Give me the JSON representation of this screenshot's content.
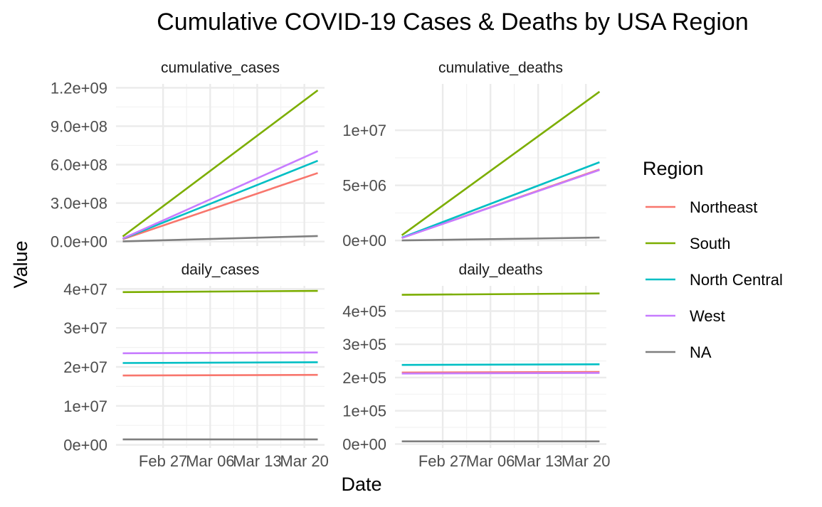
{
  "chart_data": {
    "type": "line",
    "title": "Cumulative COVID-19 Cases & Deaths by USA Region",
    "xlabel": "Date",
    "ylabel": "Value",
    "legend": {
      "title": "Region",
      "placement": "right",
      "entries": [
        "Northeast",
        "South",
        "North Central",
        "West",
        "NA"
      ]
    },
    "colors": {
      "Northeast": "#F8766D",
      "South": "#7CAE00",
      "North Central": "#00BFC4",
      "West": "#C77CFF",
      "NA": "#7F7F7F"
    },
    "grid": true,
    "facets_layout": "2x2, free y scales",
    "x_range": [
      "2023-02-20",
      "2023-03-23"
    ],
    "x_ticks": [
      {
        "date": "2023-02-27",
        "label": "Feb 27"
      },
      {
        "date": "2023-03-06",
        "label": "Mar 06"
      },
      {
        "date": "2023-03-13",
        "label": "Mar 13"
      },
      {
        "date": "2023-03-20",
        "label": "Mar 20"
      }
    ],
    "panels": [
      {
        "strip": "cumulative_cases",
        "ylim": [
          -35000000,
          1230000000
        ],
        "y_ticks": [
          {
            "value": 0,
            "label": "0.0e+00"
          },
          {
            "value": 300000000,
            "label": "3.0e+08"
          },
          {
            "value": 600000000,
            "label": "6.0e+08"
          },
          {
            "value": 900000000,
            "label": "9.0e+08"
          },
          {
            "value": 1200000000,
            "label": "1.2e+09"
          }
        ],
        "series": [
          {
            "name": "Northeast",
            "x": [
              "2023-02-21",
              "2023-03-22"
            ],
            "values": [
              18000000,
              535000000
            ]
          },
          {
            "name": "South",
            "x": [
              "2023-02-21",
              "2023-03-22"
            ],
            "values": [
              40000000,
              1180000000
            ]
          },
          {
            "name": "North Central",
            "x": [
              "2023-02-21",
              "2023-03-22"
            ],
            "values": [
              22000000,
              630000000
            ]
          },
          {
            "name": "West",
            "x": [
              "2023-02-21",
              "2023-03-22"
            ],
            "values": [
              24000000,
              705000000
            ]
          },
          {
            "name": "NA",
            "x": [
              "2023-02-21",
              "2023-03-22"
            ],
            "values": [
              1500000,
              43000000
            ]
          }
        ]
      },
      {
        "strip": "cumulative_deaths",
        "ylim": [
          -500000,
          14200000
        ],
        "y_ticks": [
          {
            "value": 0,
            "label": "0e+00"
          },
          {
            "value": 5000000,
            "label": "5e+06"
          },
          {
            "value": 10000000,
            "label": "1e+07"
          }
        ],
        "series": [
          {
            "name": "Northeast",
            "x": [
              "2023-02-21",
              "2023-03-22"
            ],
            "values": [
              230000,
              6450000
            ]
          },
          {
            "name": "South",
            "x": [
              "2023-02-21",
              "2023-03-22"
            ],
            "values": [
              480000,
              13500000
            ]
          },
          {
            "name": "North Central",
            "x": [
              "2023-02-21",
              "2023-03-22"
            ],
            "values": [
              260000,
              7100000
            ]
          },
          {
            "name": "West",
            "x": [
              "2023-02-21",
              "2023-03-22"
            ],
            "values": [
              230000,
              6400000
            ]
          },
          {
            "name": "NA",
            "x": [
              "2023-02-21",
              "2023-03-22"
            ],
            "values": [
              9000,
              270000
            ]
          }
        ]
      },
      {
        "strip": "daily_cases",
        "ylim": [
          -800000,
          40800000
        ],
        "y_ticks": [
          {
            "value": 0,
            "label": "0e+00"
          },
          {
            "value": 10000000,
            "label": "1e+07"
          },
          {
            "value": 20000000,
            "label": "2e+07"
          },
          {
            "value": 30000000,
            "label": "3e+07"
          },
          {
            "value": 40000000,
            "label": "4e+07"
          }
        ],
        "series": [
          {
            "name": "Northeast",
            "x": [
              "2023-02-21",
              "2023-03-22"
            ],
            "values": [
              17800000,
              17950000
            ]
          },
          {
            "name": "South",
            "x": [
              "2023-02-21",
              "2023-03-22"
            ],
            "values": [
              39200000,
              39500000
            ]
          },
          {
            "name": "North Central",
            "x": [
              "2023-02-21",
              "2023-03-22"
            ],
            "values": [
              21000000,
              21200000
            ]
          },
          {
            "name": "West",
            "x": [
              "2023-02-21",
              "2023-03-22"
            ],
            "values": [
              23500000,
              23700000
            ]
          },
          {
            "name": "NA",
            "x": [
              "2023-02-21",
              "2023-03-22"
            ],
            "values": [
              1400000,
              1400000
            ]
          }
        ]
      },
      {
        "strip": "daily_deaths",
        "ylim": [
          -12000,
          476000
        ],
        "y_ticks": [
          {
            "value": 0,
            "label": "0e+00"
          },
          {
            "value": 100000,
            "label": "1e+05"
          },
          {
            "value": 200000,
            "label": "2e+05"
          },
          {
            "value": 300000,
            "label": "3e+05"
          },
          {
            "value": 400000,
            "label": "4e+05"
          }
        ],
        "series": [
          {
            "name": "Northeast",
            "x": [
              "2023-02-21",
              "2023-03-22"
            ],
            "values": [
              215000,
              217000
            ]
          },
          {
            "name": "South",
            "x": [
              "2023-02-21",
              "2023-03-22"
            ],
            "values": [
              449000,
              453000
            ]
          },
          {
            "name": "North Central",
            "x": [
              "2023-02-21",
              "2023-03-22"
            ],
            "values": [
              238000,
              240000
            ]
          },
          {
            "name": "West",
            "x": [
              "2023-02-21",
              "2023-03-22"
            ],
            "values": [
              212000,
              214000
            ]
          },
          {
            "name": "NA",
            "x": [
              "2023-02-21",
              "2023-03-22"
            ],
            "values": [
              8000,
              8000
            ]
          }
        ]
      }
    ]
  }
}
